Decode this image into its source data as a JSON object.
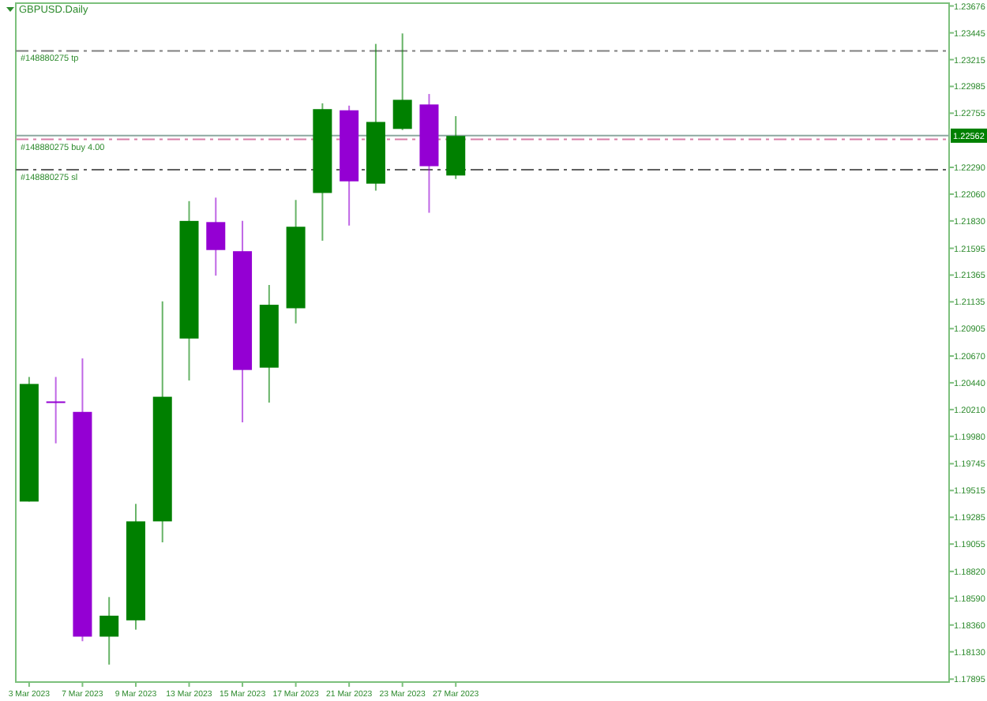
{
  "chart_data": {
    "type": "candlestick",
    "title": "GBPUSD.Daily",
    "categories": [
      "3 Mar 2023",
      null,
      "7 Mar 2023",
      null,
      "9 Mar 2023",
      null,
      "13 Mar 2023",
      null,
      "15 Mar 2023",
      null,
      "17 Mar 2023",
      null,
      "21 Mar 2023",
      null,
      "23 Mar 2023",
      null,
      "27 Mar 2023",
      null,
      null,
      null,
      null,
      null,
      null,
      null,
      null,
      null,
      null,
      null,
      null,
      null,
      null,
      null,
      null,
      null,
      null
    ],
    "ohlc": [
      [
        1.1942,
        1.2049,
        1.1942,
        1.2043
      ],
      [
        1.2028,
        1.2049,
        1.1992,
        1.2027
      ],
      [
        1.2019,
        1.2065,
        1.1822,
        1.1826
      ],
      [
        1.1826,
        1.186,
        1.1802,
        1.1844
      ],
      [
        1.184,
        1.194,
        1.1832,
        1.1925
      ],
      [
        1.1925,
        1.2114,
        1.1907,
        1.2032
      ],
      [
        1.2082,
        1.22,
        1.2046,
        1.2183
      ],
      [
        1.2182,
        1.2203,
        1.2136,
        1.2158
      ],
      [
        1.2157,
        1.2183,
        1.201,
        1.2055
      ],
      [
        1.2057,
        1.2128,
        1.2027,
        1.2111
      ],
      [
        1.2108,
        1.2201,
        1.2095,
        1.2178
      ],
      [
        1.2207,
        1.2284,
        1.2166,
        1.2279
      ],
      [
        1.2278,
        1.2282,
        1.2179,
        1.2217
      ],
      [
        1.2215,
        1.2335,
        1.2209,
        1.2268
      ],
      [
        1.2262,
        1.2344,
        1.2261,
        1.2287
      ],
      [
        1.2283,
        1.2292,
        1.219,
        1.223
      ],
      [
        1.2222,
        1.2273,
        1.2219,
        1.2256
      ],
      null,
      null,
      null,
      null,
      null,
      null,
      null,
      null,
      null,
      null,
      null,
      null,
      null,
      null,
      null,
      null,
      null,
      null
    ],
    "colors": [
      "#008000",
      "#9400d3",
      "#9400d3",
      "#008000",
      "#008000",
      "#008000",
      "#008000",
      "#9400d3",
      "#9400d3",
      "#008000",
      "#008000",
      "#008000",
      "#9400d3",
      "#008000",
      "#008000",
      "#9400d3",
      "#008000",
      null,
      null,
      null,
      null,
      null,
      null,
      null,
      null,
      null,
      null,
      null,
      null,
      null,
      null,
      null,
      null,
      null,
      null
    ],
    "ylim": [
      1.1787,
      1.237
    ],
    "yticks": [
      1.23676,
      1.23445,
      1.23215,
      1.22985,
      1.22755,
      {
        "value": 1.2229,
        "label": "1.22290"
      },
      {
        "value": 1.2206,
        "label": "1.22060"
      },
      {
        "value": 1.2183,
        "label": "1.21830"
      },
      1.21595,
      1.21365,
      1.21135,
      1.20905,
      {
        "value": 1.2067,
        "label": "1.20670"
      },
      {
        "value": 1.2044,
        "label": "1.20440"
      },
      {
        "value": 1.2021,
        "label": "1.20210"
      },
      {
        "value": 1.1998,
        "label": "1.19980"
      },
      1.19745,
      1.19515,
      1.19285,
      1.19055,
      {
        "value": 1.1882,
        "label": "1.18820"
      },
      {
        "value": 1.1859,
        "label": "1.18590"
      },
      {
        "value": 1.1836,
        "label": "1.18360"
      },
      {
        "value": 1.1813,
        "label": "1.18130"
      },
      1.17895
    ],
    "ref_lines": [
      {
        "axis": "y",
        "value": 1.2329,
        "label": "#148880275 tp",
        "color": "#808080",
        "line_style": "dashed"
      },
      {
        "axis": "y",
        "value": 1.2253,
        "label": "#148880275 buy 4.00",
        "color": "#d77fa8",
        "line_style": "dashed"
      },
      {
        "axis": "y",
        "value": 1.2227,
        "label": "#148880275 sl",
        "color": "#606060",
        "line_style": "dashed"
      },
      {
        "axis": "y",
        "value": 1.22562,
        "label": "1.22562",
        "color": "#8ca8a0",
        "line_style": "solid"
      }
    ]
  }
}
